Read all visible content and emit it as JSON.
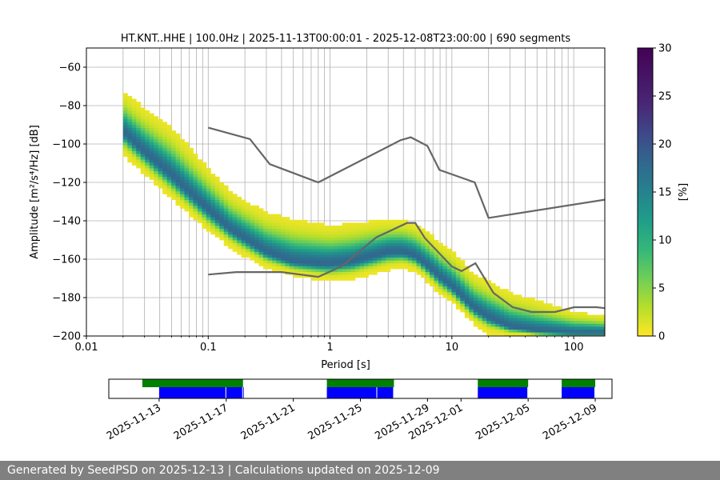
{
  "colors": {
    "nlnm_nhnm_line": "#666666",
    "grid": "#b0b0b0",
    "coverage_data": "#0000ff",
    "coverage_used": "#008000"
  },
  "footer": {
    "text": "Generated by SeedPSD on 2025-12-13 | Calculations updated on 2025-12-09"
  },
  "chart_data": [
    {
      "type": "heatmap",
      "title": "HT.KNT..HHE | 100.0Hz | 2025-11-13T00:00:01 - 2025-12-08T23:00:00 | 690 segments",
      "xlabel": "Period [s]",
      "ylabel": "Amplitude [m²/s⁴/Hz] [dB]",
      "x_scale": "log",
      "xlim": [
        0.01,
        180
      ],
      "ylim": [
        -200,
        -50
      ],
      "xticks": [
        {
          "value": 0.01,
          "label": "0.01"
        },
        {
          "value": 0.1,
          "label": "0.1"
        },
        {
          "value": 1,
          "label": "1"
        },
        {
          "value": 10,
          "label": "10"
        },
        {
          "value": 100,
          "label": "100"
        }
      ],
      "yticks": [
        -60,
        -80,
        -100,
        -120,
        -140,
        -160,
        -180,
        -200
      ],
      "ytick_labels": [
        "−60",
        "−80",
        "−100",
        "−120",
        "−140",
        "−160",
        "−180",
        "−200"
      ],
      "grid": true,
      "colormap": "viridis_r",
      "colorbar": {
        "label": "[%]",
        "range": [
          0,
          30
        ],
        "ticks": [
          0,
          5,
          10,
          15,
          20,
          25,
          30
        ]
      },
      "psd_mode": {
        "period": [
          0.02,
          0.03,
          0.05,
          0.07,
          0.1,
          0.15,
          0.2,
          0.3,
          0.5,
          0.8,
          1.0,
          1.5,
          2.0,
          3.0,
          4.0,
          5.0,
          6.0,
          8.0,
          10,
          15,
          20,
          30,
          50,
          100,
          180
        ],
        "amplitude": [
          -94,
          -105,
          -117,
          -126,
          -135,
          -145,
          -150,
          -157,
          -162,
          -163,
          -163,
          -162,
          -160,
          -157,
          -157,
          -159,
          -163,
          -170,
          -175,
          -186,
          -191,
          -196,
          -198,
          -199,
          -199
        ]
      },
      "psd_spread": {
        "period": [
          0.02,
          0.03,
          0.05,
          0.07,
          0.1,
          0.15,
          0.2,
          0.3,
          0.5,
          0.8,
          1.0,
          1.5,
          2.0,
          3.0,
          4.0,
          5.0,
          6.0,
          8.0,
          10,
          15,
          20,
          30,
          50,
          100,
          180
        ],
        "upper": [
          -73,
          -82,
          -92,
          -102,
          -113,
          -125,
          -130,
          -136,
          -140,
          -142,
          -143,
          -142,
          -141,
          -140,
          -140,
          -142,
          -145,
          -152,
          -156,
          -168,
          -172,
          -178,
          -182,
          -188,
          -190
        ],
        "lower": [
          -105,
          -115,
          -128,
          -136,
          -145,
          -153,
          -158,
          -164,
          -168,
          -170,
          -171,
          -170,
          -168,
          -165,
          -164,
          -166,
          -170,
          -178,
          -182,
          -193,
          -198,
          -200,
          -200,
          -200,
          -200
        ]
      },
      "nhnm": {
        "period": [
          0.1,
          0.22,
          0.32,
          0.8,
          3.8,
          4.6,
          6.3,
          7.9,
          15.4,
          20.0,
          180
        ],
        "amplitude": [
          -91.5,
          -97.4,
          -110.5,
          -120.0,
          -98.0,
          -96.5,
          -101.0,
          -113.5,
          -120.0,
          -138.5,
          -129
        ]
      },
      "nlnm": {
        "period": [
          0.1,
          0.17,
          0.4,
          0.8,
          1.24,
          2.4,
          4.3,
          5.0,
          6.0,
          10.0,
          12.0,
          15.6,
          21.9,
          31.6,
          45.0,
          70.0,
          101.0,
          154.0,
          180
        ],
        "amplitude": [
          -168.0,
          -166.7,
          -166.7,
          -169.2,
          -163.7,
          -148.6,
          -141.1,
          -141.1,
          -149.0,
          -163.8,
          -166.2,
          -162.1,
          -177.5,
          -185.0,
          -187.5,
          -187.5,
          -185.0,
          -185.0,
          -185.5
        ]
      }
    },
    {
      "type": "bar",
      "title": "",
      "xlabel": "",
      "ylabel": "",
      "x_scale": "date",
      "xlim": [
        "2025-11-10",
        "2025-12-10"
      ],
      "xtick_labels": [
        "2025-11-13",
        "2025-11-17",
        "2025-11-21",
        "2025-11-25",
        "2025-11-29",
        "2025-12-01",
        "2025-12-05",
        "2025-12-09"
      ],
      "xtick_dates": [
        "2025-11-13",
        "2025-11-17",
        "2025-11-21",
        "2025-11-25",
        "2025-11-29",
        "2025-12-01",
        "2025-12-05",
        "2025-12-09"
      ],
      "series": [
        {
          "role": "data_available",
          "intervals": [
            [
              "2025-11-12",
              "2025-11-18"
            ],
            [
              "2025-11-23",
              "2025-11-27"
            ],
            [
              "2025-12-02",
              "2025-12-05"
            ],
            [
              "2025-12-07",
              "2025-12-09"
            ]
          ]
        },
        {
          "role": "used_segments",
          "intervals": [
            [
              "2025-11-13",
              "2025-11-17"
            ],
            [
              "2025-11-17",
              "2025-11-18"
            ],
            [
              "2025-11-18",
              "2025-11-18"
            ],
            [
              "2025-11-23",
              "2025-11-26"
            ],
            [
              "2025-11-26",
              "2025-11-27"
            ],
            [
              "2025-12-02",
              "2025-12-05"
            ],
            [
              "2025-12-07",
              "2025-12-09"
            ]
          ]
        }
      ]
    }
  ]
}
